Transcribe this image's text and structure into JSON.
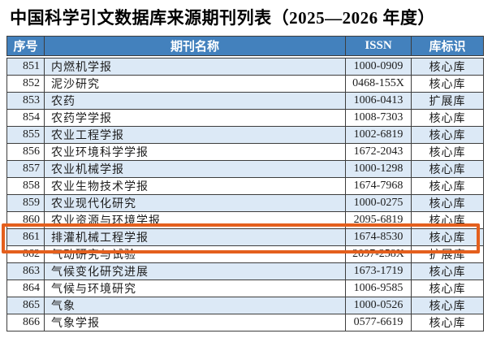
{
  "title": "中国科学引文数据库来源期刊列表（2025—2026 年度）",
  "table": {
    "columns": [
      "序号",
      "期刊名称",
      "ISSN",
      "库标识"
    ],
    "rows": [
      {
        "no": "851",
        "name": "内燃机学报",
        "issn": "1000-0909",
        "db": "核心库"
      },
      {
        "no": "852",
        "name": "泥沙研究",
        "issn": "0468-155X",
        "db": "核心库"
      },
      {
        "no": "853",
        "name": "农药",
        "issn": "1006-0413",
        "db": "扩展库"
      },
      {
        "no": "854",
        "name": "农药学学报",
        "issn": "1008-7303",
        "db": "核心库"
      },
      {
        "no": "855",
        "name": "农业工程学报",
        "issn": "1002-6819",
        "db": "核心库"
      },
      {
        "no": "856",
        "name": "农业环境科学学报",
        "issn": "1672-2043",
        "db": "核心库"
      },
      {
        "no": "857",
        "name": "农业机械学报",
        "issn": "1000-1298",
        "db": "核心库"
      },
      {
        "no": "858",
        "name": "农业生物技术学报",
        "issn": "1674-7968",
        "db": "核心库"
      },
      {
        "no": "859",
        "name": "农业现代化研究",
        "issn": "1000-0275",
        "db": "核心库"
      },
      {
        "no": "860",
        "name": "农业资源与环境学报",
        "issn": "2095-6819",
        "db": "核心库"
      },
      {
        "no": "861",
        "name": "排灌机械工程学报",
        "issn": "1674-8530",
        "db": "核心库"
      },
      {
        "no": "862",
        "name": "气动研究与试验",
        "issn": "2097-258X",
        "db": "扩展库"
      },
      {
        "no": "863",
        "name": "气候变化研究进展",
        "issn": "1673-1719",
        "db": "核心库"
      },
      {
        "no": "864",
        "name": "气候与环境研究",
        "issn": "1006-9585",
        "db": "核心库"
      },
      {
        "no": "865",
        "name": "气象",
        "issn": "1000-0526",
        "db": "核心库"
      },
      {
        "no": "866",
        "name": "气象学报",
        "issn": "0577-6619",
        "db": "核心库"
      }
    ]
  },
  "highlight": {
    "row_no": "861"
  },
  "colors": {
    "header_bg": "#4381bd",
    "header_text": "#ffffff",
    "row_alt_bg": "#dce9f6",
    "row_bg": "#ffffff",
    "border": "#3d3d3d",
    "text": "#1c1c1c",
    "highlight": "#e45f1d",
    "page_bg": "#ffffff"
  }
}
